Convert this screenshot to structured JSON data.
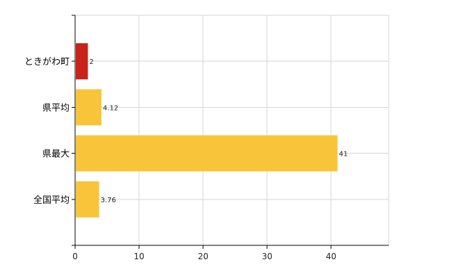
{
  "chart_data": {
    "type": "bar",
    "orientation": "horizontal",
    "categories": [
      "ときがわ町",
      "県平均",
      "県最大",
      "全国平均"
    ],
    "values": [
      2,
      4.12,
      41,
      3.76
    ],
    "value_labels": [
      "2",
      "4.12",
      "41",
      "3.76"
    ],
    "bar_colors": [
      "#c8221a",
      "#f8c53a",
      "#f8c53a",
      "#f8c53a"
    ],
    "xlim": [
      0,
      49
    ],
    "xticks": [
      0,
      10,
      20,
      30,
      40
    ],
    "xtick_labels": [
      "0",
      "10",
      "20",
      "30",
      "40"
    ],
    "grid": true,
    "title": "",
    "xlabel": "",
    "ylabel": ""
  }
}
